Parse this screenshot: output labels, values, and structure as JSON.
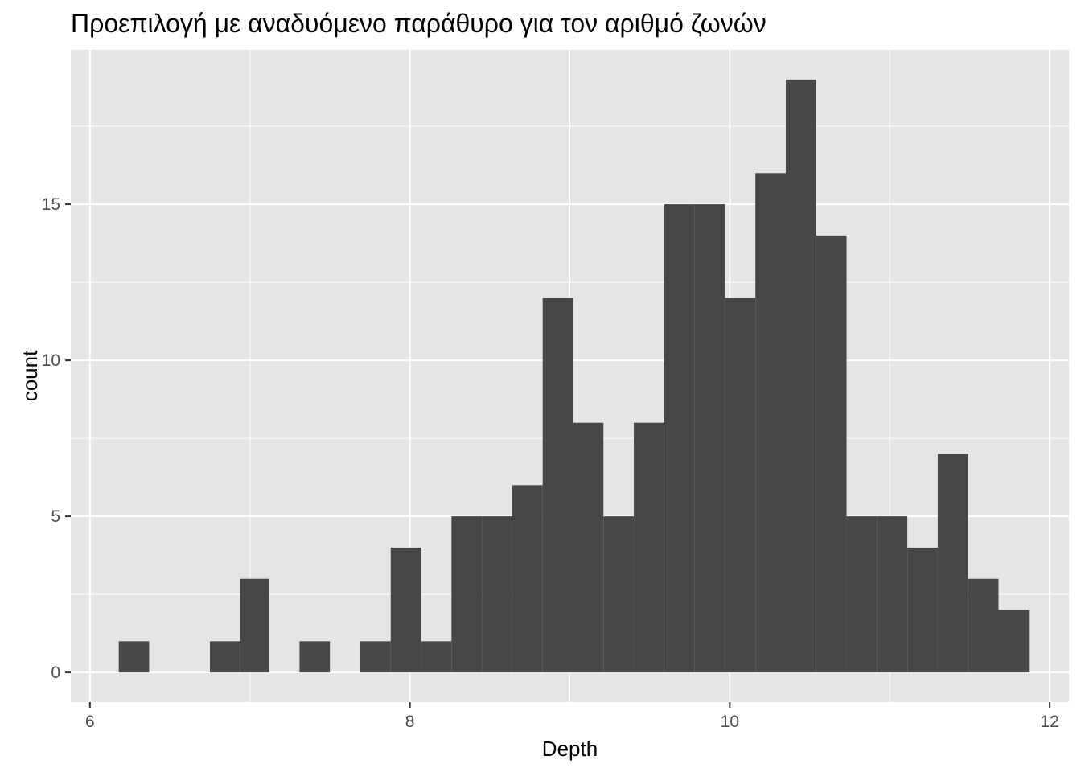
{
  "chart_data": {
    "type": "bar",
    "title": "Προεπιλογή με αναδυόμενο παράθυρο για τον αριθμό ζωνών",
    "xlabel": "Depth",
    "ylabel": "count",
    "xlim": [
      5.88,
      12.12
    ],
    "ylim": [
      -0.95,
      19.95
    ],
    "x_ticks": [
      6,
      8,
      10,
      12
    ],
    "x_tick_labels": [
      "6",
      "8",
      "10",
      "12"
    ],
    "y_ticks": [
      0,
      5,
      10,
      15
    ],
    "y_tick_labels": [
      "0",
      "5",
      "10",
      "15"
    ],
    "grid": true,
    "panel_background": "#e5e5e5",
    "grid_color": "#ffffff",
    "bar_color": "#474747",
    "bins": [
      {
        "x0": 6.18,
        "x1": 6.37,
        "count": 1
      },
      {
        "x0": 6.37,
        "x1": 6.56,
        "count": 0
      },
      {
        "x0": 6.56,
        "x1": 6.75,
        "count": 0
      },
      {
        "x0": 6.75,
        "x1": 6.94,
        "count": 1
      },
      {
        "x0": 6.94,
        "x1": 7.12,
        "count": 3
      },
      {
        "x0": 7.12,
        "x1": 7.31,
        "count": 0
      },
      {
        "x0": 7.31,
        "x1": 7.5,
        "count": 1
      },
      {
        "x0": 7.5,
        "x1": 7.69,
        "count": 0
      },
      {
        "x0": 7.69,
        "x1": 7.88,
        "count": 1
      },
      {
        "x0": 7.88,
        "x1": 8.07,
        "count": 4
      },
      {
        "x0": 8.07,
        "x1": 8.26,
        "count": 1
      },
      {
        "x0": 8.26,
        "x1": 8.45,
        "count": 5
      },
      {
        "x0": 8.45,
        "x1": 8.64,
        "count": 5
      },
      {
        "x0": 8.64,
        "x1": 8.83,
        "count": 6
      },
      {
        "x0": 8.83,
        "x1": 9.02,
        "count": 12
      },
      {
        "x0": 9.02,
        "x1": 9.21,
        "count": 8
      },
      {
        "x0": 9.21,
        "x1": 9.4,
        "count": 5
      },
      {
        "x0": 9.4,
        "x1": 9.59,
        "count": 8
      },
      {
        "x0": 9.59,
        "x1": 9.78,
        "count": 15
      },
      {
        "x0": 9.78,
        "x1": 9.97,
        "count": 15
      },
      {
        "x0": 9.97,
        "x1": 10.16,
        "count": 12
      },
      {
        "x0": 10.16,
        "x1": 10.35,
        "count": 16
      },
      {
        "x0": 10.35,
        "x1": 10.54,
        "count": 19
      },
      {
        "x0": 10.54,
        "x1": 10.73,
        "count": 14
      },
      {
        "x0": 10.73,
        "x1": 10.92,
        "count": 5
      },
      {
        "x0": 10.92,
        "x1": 11.11,
        "count": 5
      },
      {
        "x0": 11.11,
        "x1": 11.3,
        "count": 4
      },
      {
        "x0": 11.3,
        "x1": 11.49,
        "count": 7
      },
      {
        "x0": 11.49,
        "x1": 11.68,
        "count": 3
      },
      {
        "x0": 11.68,
        "x1": 11.87,
        "count": 2
      }
    ]
  }
}
